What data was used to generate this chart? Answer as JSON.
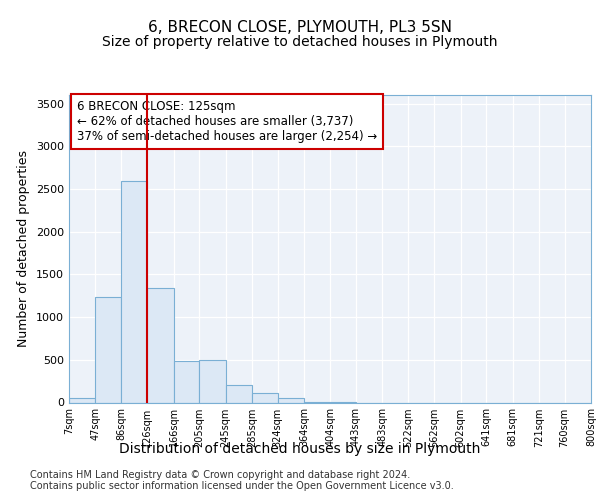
{
  "title": "6, BRECON CLOSE, PLYMOUTH, PL3 5SN",
  "subtitle": "Size of property relative to detached houses in Plymouth",
  "xlabel": "Distribution of detached houses by size in Plymouth",
  "ylabel": "Number of detached properties",
  "footer_line1": "Contains HM Land Registry data © Crown copyright and database right 2024.",
  "footer_line2": "Contains public sector information licensed under the Open Government Licence v3.0.",
  "property_label": "6 BRECON CLOSE: 125sqm",
  "annotation_line1": "← 62% of detached houses are smaller (3,737)",
  "annotation_line2": "37% of semi-detached houses are larger (2,254) →",
  "bin_edges": [
    7,
    47,
    86,
    126,
    166,
    205,
    245,
    285,
    324,
    364,
    404,
    443,
    483,
    522,
    562,
    602,
    641,
    681,
    721,
    760,
    800
  ],
  "bin_labels": [
    "7sqm",
    "47sqm",
    "86sqm",
    "126sqm",
    "166sqm",
    "205sqm",
    "245sqm",
    "285sqm",
    "324sqm",
    "364sqm",
    "404sqm",
    "443sqm",
    "483sqm",
    "522sqm",
    "562sqm",
    "602sqm",
    "641sqm",
    "681sqm",
    "721sqm",
    "760sqm",
    "800sqm"
  ],
  "bar_heights": [
    50,
    1230,
    2590,
    1340,
    490,
    500,
    200,
    110,
    55,
    5,
    5,
    0,
    0,
    0,
    0,
    0,
    0,
    0,
    0,
    0
  ],
  "bar_color": "#dce8f5",
  "bar_edge_color": "#7aafd4",
  "vline_color": "#cc0000",
  "vline_x": 126,
  "ylim": [
    0,
    3600
  ],
  "yticks": [
    0,
    500,
    1000,
    1500,
    2000,
    2500,
    3000,
    3500
  ],
  "bg_color": "#ffffff",
  "plot_bg_color": "#edf2f9",
  "grid_color": "#ffffff",
  "annotation_box_color": "#cc0000",
  "title_fontsize": 11,
  "subtitle_fontsize": 10,
  "axis_label_fontsize": 9,
  "tick_fontsize": 8,
  "annotation_fontsize": 8.5,
  "footer_fontsize": 7
}
